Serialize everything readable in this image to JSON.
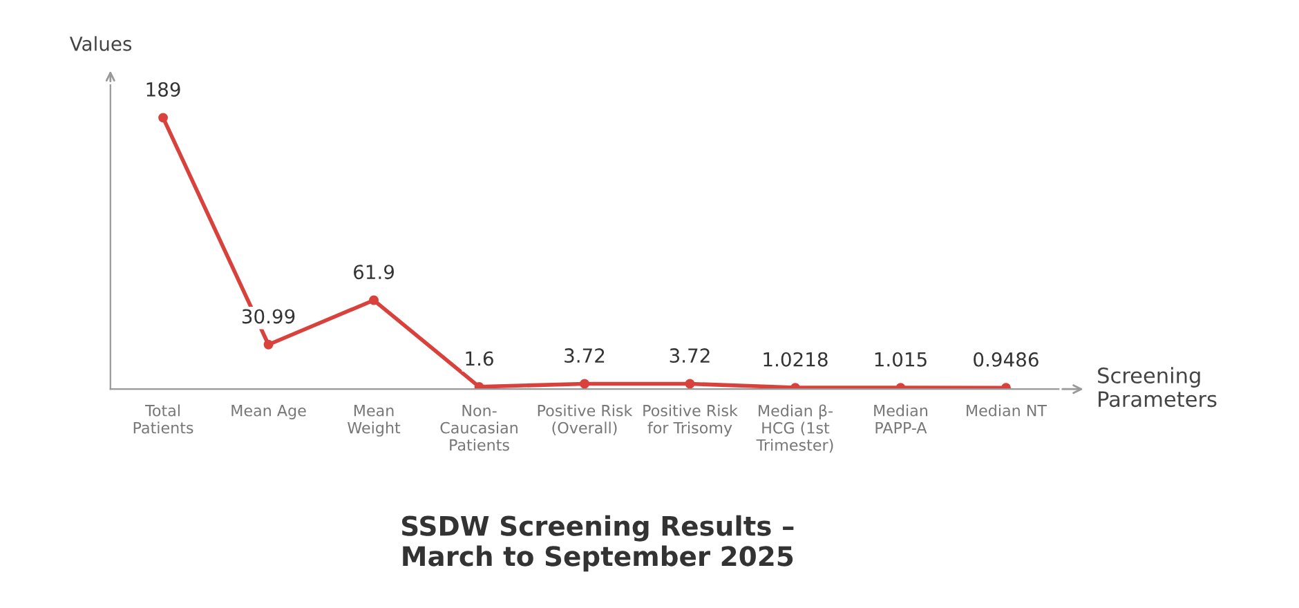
{
  "chart_data": {
    "type": "line",
    "title": "SSDW Screening Results –\nMarch to September 2025",
    "xlabel": "Screening\nParameters",
    "ylabel": "Values",
    "categories": [
      "Total\nPatients",
      "Mean Age",
      "Mean\nWeight",
      "Non-\nCaucasian\nPatients",
      "Positive Risk\n(Overall)",
      "Positive Risk\nfor Trisomy",
      "Median β-\nHCG (1st\nTrimester)",
      "Median\nPAPP-A",
      "Median NT"
    ],
    "series": [
      {
        "color": "#d9423c",
        "values": [
          189,
          30.99,
          61.9,
          1.6,
          3.72,
          3.72,
          1.0218,
          1.015,
          0.9486
        ]
      }
    ],
    "data_labels": true,
    "marker": "circle",
    "grid": false,
    "legend": false
  }
}
